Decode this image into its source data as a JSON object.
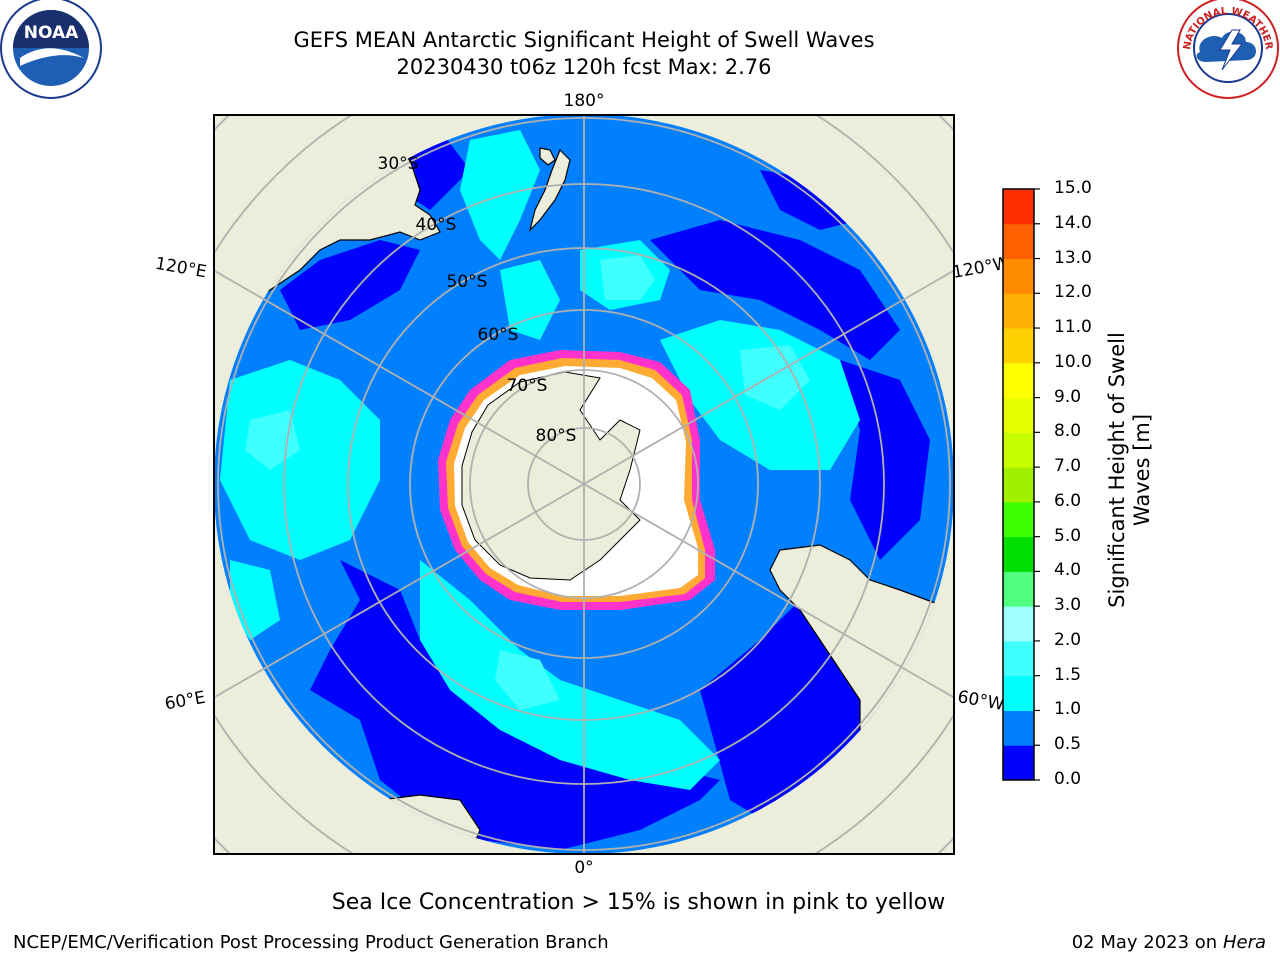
{
  "title": {
    "line1": "GEFS MEAN Antarctic Significant Height of Swell Waves",
    "line2": "20230430 t06z 120h fcst   Max: 2.76"
  },
  "map": {
    "projection": "south-polar-stereographic",
    "longitude_labels": [
      "180°",
      "120°E",
      "120°W",
      "60°E",
      "60°W",
      "0°"
    ],
    "latitude_labels": [
      "30°S",
      "40°S",
      "50°S",
      "60°S",
      "70°S",
      "80°S"
    ],
    "colors": {
      "land": "#ededdb",
      "ice_sheet": "#ffffff",
      "grid": "#b0b0b0",
      "sea_ice_edge": "#ff33cc",
      "sea_ice_inner": "#ffaa33"
    }
  },
  "colorbar": {
    "title": "Significant Height of Swell Waves [m]",
    "tick_labels": [
      "0.0",
      "0.5",
      "1.0",
      "1.5",
      "2.0",
      "3.0",
      "4.0",
      "5.0",
      "6.0",
      "7.0",
      "8.0",
      "9.0",
      "10.0",
      "11.0",
      "12.0",
      "13.0",
      "14.0",
      "15.0"
    ],
    "colors": [
      "#0000ff",
      "#0080ff",
      "#00ffff",
      "#40ffff",
      "#a0ffff",
      "#50ff80",
      "#00e000",
      "#40ff00",
      "#a0f000",
      "#c8ff00",
      "#e8ff00",
      "#ffff00",
      "#ffd000",
      "#ffb000",
      "#ff8c00",
      "#ff6000",
      "#ff3000",
      "#ff0000"
    ]
  },
  "caption": "Sea Ice Concentration > 15% is shown in pink to yellow",
  "footer": {
    "left": "NCEP/EMC/Verification Post Processing Product Generation Branch",
    "right_date": "02 May 2023 on",
    "right_host": "Hera"
  },
  "logos": {
    "left": {
      "icon": "noaa-logo",
      "text": "NOAA"
    },
    "right": {
      "icon": "nws-logo",
      "text": "NATIONAL WEATHER SERVICE"
    }
  }
}
